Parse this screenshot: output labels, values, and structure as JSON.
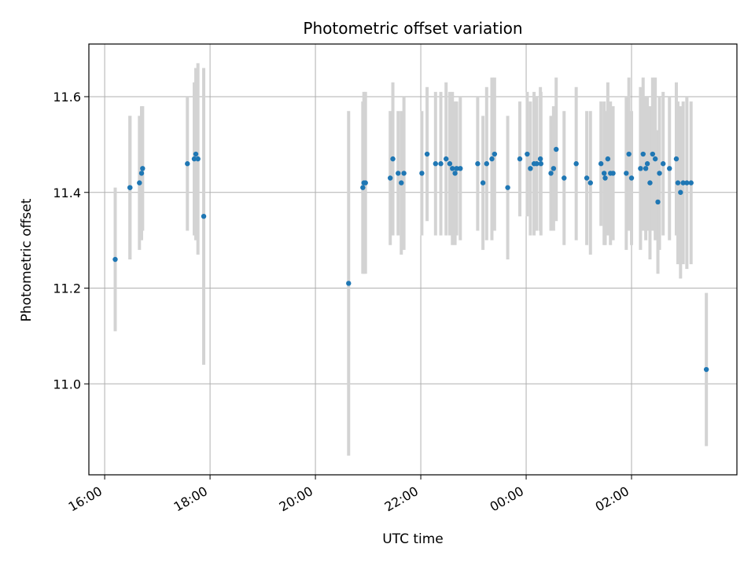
{
  "chart_data": {
    "type": "scatter",
    "title": "Photometric offset variation",
    "xlabel": "UTC time",
    "ylabel": "Photometric offset",
    "x_unit": "UTC hours, values past 24 belong to the next day",
    "xlim": [
      15.7,
      28.0
    ],
    "ylim": [
      10.81,
      11.71
    ],
    "xticks": [
      {
        "value": 16,
        "label": "16:00"
      },
      {
        "value": 18,
        "label": "18:00"
      },
      {
        "value": 20,
        "label": "20:00"
      },
      {
        "value": 22,
        "label": "22:00"
      },
      {
        "value": 24,
        "label": "00:00"
      },
      {
        "value": 26,
        "label": "02:00"
      }
    ],
    "yticks": [
      {
        "value": 11.0,
        "label": "11.0"
      },
      {
        "value": 11.2,
        "label": "11.2"
      },
      {
        "value": 11.4,
        "label": "11.4"
      },
      {
        "value": 11.6,
        "label": "11.6"
      }
    ],
    "grid": true,
    "point_color": "#1f77b4",
    "errorbar_color": "#d3d3d3",
    "series": [
      {
        "x": [
          16.2,
          16.48,
          16.48,
          16.66,
          16.7,
          16.72,
          17.57,
          17.7,
          17.73,
          17.77,
          17.88,
          20.63,
          20.9,
          20.92,
          20.95,
          21.42,
          21.47,
          21.57,
          21.63,
          21.68,
          22.02,
          22.12,
          22.28,
          22.38,
          22.48,
          22.55,
          22.6,
          22.65,
          22.68,
          22.75,
          23.08,
          23.18,
          23.25,
          23.35,
          23.4,
          23.65,
          23.88,
          24.02,
          24.08,
          24.15,
          24.2,
          24.27,
          24.28,
          24.47,
          24.52,
          24.57,
          24.72,
          24.95,
          25.15,
          25.22,
          25.42,
          25.48,
          25.5,
          25.55,
          25.6,
          25.65,
          25.9,
          25.95,
          26.0,
          26.17,
          26.22,
          26.27,
          26.3,
          26.35,
          26.4,
          26.45,
          26.5,
          26.53,
          26.6,
          26.72,
          26.85,
          26.88,
          26.93,
          26.98,
          27.05,
          27.13,
          27.42
        ],
        "y": [
          11.26,
          11.41,
          11.41,
          11.42,
          11.44,
          11.45,
          11.46,
          11.47,
          11.48,
          11.47,
          11.35,
          11.21,
          11.41,
          11.42,
          11.42,
          11.43,
          11.47,
          11.44,
          11.42,
          11.44,
          11.44,
          11.48,
          11.46,
          11.46,
          11.47,
          11.46,
          11.45,
          11.44,
          11.45,
          11.45,
          11.46,
          11.42,
          11.46,
          11.47,
          11.48,
          11.41,
          11.47,
          11.48,
          11.45,
          11.46,
          11.46,
          11.47,
          11.46,
          11.44,
          11.45,
          11.49,
          11.43,
          11.46,
          11.43,
          11.42,
          11.46,
          11.44,
          11.43,
          11.47,
          11.44,
          11.44,
          11.44,
          11.48,
          11.43,
          11.45,
          11.48,
          11.45,
          11.46,
          11.42,
          11.48,
          11.47,
          11.38,
          11.44,
          11.46,
          11.45,
          11.47,
          11.42,
          11.4,
          11.42,
          11.42,
          11.42,
          11.03
        ],
        "err": [
          0.15,
          0.15,
          0.15,
          0.14,
          0.14,
          0.13,
          0.14,
          0.16,
          0.18,
          0.2,
          0.31,
          0.36,
          0.18,
          0.19,
          0.19,
          0.14,
          0.16,
          0.13,
          0.15,
          0.16,
          0.13,
          0.14,
          0.15,
          0.15,
          0.16,
          0.15,
          0.16,
          0.15,
          0.14,
          0.15,
          0.14,
          0.14,
          0.16,
          0.17,
          0.16,
          0.15,
          0.12,
          0.13,
          0.14,
          0.15,
          0.14,
          0.15,
          0.15,
          0.12,
          0.13,
          0.15,
          0.14,
          0.16,
          0.14,
          0.15,
          0.13,
          0.15,
          0.14,
          0.16,
          0.15,
          0.14,
          0.16,
          0.16,
          0.14,
          0.17,
          0.16,
          0.15,
          0.14,
          0.16,
          0.16,
          0.17,
          0.15,
          0.16,
          0.15,
          0.15,
          0.16,
          0.17,
          0.18,
          0.17,
          0.18,
          0.17,
          0.16
        ]
      }
    ]
  }
}
